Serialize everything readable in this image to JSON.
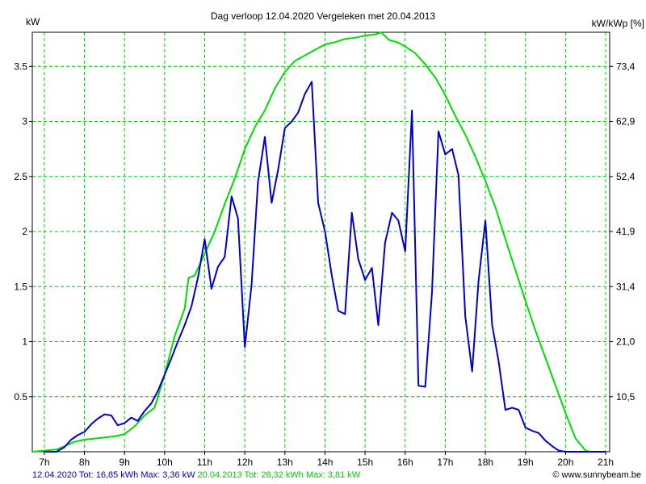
{
  "chart_data": {
    "type": "line",
    "title": "Dag  verloop 12.04.2020   Vergeleken met 20.04.2013",
    "ylabel_left": "kW",
    "ylabel_right": "kW/kWp [%]",
    "xlim": [
      6.7,
      21.1
    ],
    "ylim": [
      0,
      3.81
    ],
    "grid": true,
    "x_tick_labels": [
      "7h",
      "8h",
      "9h",
      "10h",
      "11h",
      "12h",
      "13h",
      "14h",
      "15h",
      "16h",
      "17h",
      "18h",
      "19h",
      "20h",
      "21h"
    ],
    "y_ticks_left": [
      0.5,
      1,
      1.5,
      2,
      2.5,
      3,
      3.5
    ],
    "y_tick_labels_left": [
      "0.5",
      "1",
      "1.5",
      "2",
      "2.5",
      "3",
      "3.5"
    ],
    "y_tick_labels_right": [
      "10,5",
      "21,0",
      "31,4",
      "41,9",
      "52,4",
      "62,9",
      "73,4"
    ],
    "series": [
      {
        "name": "12.04.2020 Tot: 16,85 kWh Max: 3,36 kW",
        "color": "#0000cc",
        "x": [
          7.0,
          7.3,
          7.5,
          7.67,
          7.83,
          8.0,
          8.17,
          8.33,
          8.5,
          8.67,
          8.83,
          9.0,
          9.17,
          9.33,
          9.5,
          9.67,
          9.83,
          10.0,
          10.17,
          10.33,
          10.5,
          10.67,
          10.83,
          11.0,
          11.17,
          11.33,
          11.5,
          11.67,
          11.83,
          12.0,
          12.17,
          12.33,
          12.5,
          12.67,
          12.83,
          13.0,
          13.17,
          13.33,
          13.5,
          13.67,
          13.83,
          14.0,
          14.17,
          14.33,
          14.5,
          14.67,
          14.83,
          15.0,
          15.17,
          15.33,
          15.5,
          15.67,
          15.83,
          16.0,
          16.17,
          16.33,
          16.5,
          16.67,
          16.83,
          17.0,
          17.17,
          17.33,
          17.5,
          17.67,
          17.83,
          18.0,
          18.17,
          18.33,
          18.5,
          18.67,
          18.83,
          19.0,
          19.17,
          19.33,
          19.5,
          19.67,
          19.83,
          20.0,
          20.5,
          21.0
        ],
        "values": [
          0.0,
          0.0,
          0.04,
          0.11,
          0.15,
          0.18,
          0.25,
          0.3,
          0.34,
          0.33,
          0.24,
          0.26,
          0.31,
          0.28,
          0.37,
          0.44,
          0.55,
          0.7,
          0.85,
          1.0,
          1.15,
          1.32,
          1.58,
          1.93,
          1.48,
          1.68,
          1.77,
          2.32,
          2.12,
          0.95,
          1.52,
          2.45,
          2.86,
          2.26,
          2.56,
          2.94,
          3.0,
          3.08,
          3.25,
          3.36,
          2.26,
          2.0,
          1.6,
          1.28,
          1.25,
          2.17,
          1.75,
          1.56,
          1.67,
          1.15,
          1.9,
          2.17,
          2.1,
          1.82,
          3.1,
          0.6,
          0.59,
          1.45,
          2.91,
          2.7,
          2.75,
          2.51,
          1.23,
          0.73,
          1.55,
          2.1,
          1.15,
          0.82,
          0.38,
          0.4,
          0.38,
          0.22,
          0.19,
          0.17,
          0.1,
          0.05,
          0.01,
          0.0,
          0.0,
          0.0
        ]
      },
      {
        "name": "20.04.2013 Tot: 28,32 kWh Max: 3,81 kW",
        "color": "#00dd00",
        "x": [
          6.7,
          7.3,
          7.5,
          7.75,
          8.0,
          8.25,
          8.5,
          8.75,
          9.0,
          9.25,
          9.5,
          9.75,
          10.0,
          10.25,
          10.5,
          10.6,
          10.75,
          11.0,
          11.25,
          11.5,
          11.75,
          12.0,
          12.25,
          12.5,
          12.75,
          13.0,
          13.25,
          13.5,
          13.75,
          14.0,
          14.25,
          14.5,
          14.75,
          15.0,
          15.25,
          15.4,
          15.6,
          15.8,
          16.0,
          16.25,
          16.5,
          16.75,
          17.0,
          17.25,
          17.5,
          17.75,
          18.0,
          18.25,
          18.5,
          18.75,
          19.0,
          19.25,
          19.5,
          19.75,
          20.0,
          20.25,
          20.5,
          20.6,
          21.0
        ],
        "values": [
          0.0,
          0.02,
          0.05,
          0.09,
          0.11,
          0.12,
          0.13,
          0.14,
          0.16,
          0.23,
          0.33,
          0.4,
          0.7,
          1.05,
          1.3,
          1.58,
          1.6,
          1.8,
          2.0,
          2.25,
          2.48,
          2.75,
          2.95,
          3.1,
          3.3,
          3.45,
          3.55,
          3.6,
          3.65,
          3.7,
          3.72,
          3.75,
          3.76,
          3.78,
          3.79,
          3.81,
          3.74,
          3.72,
          3.68,
          3.62,
          3.52,
          3.4,
          3.24,
          3.05,
          2.88,
          2.68,
          2.46,
          2.22,
          1.93,
          1.65,
          1.37,
          1.1,
          0.85,
          0.6,
          0.35,
          0.12,
          0.01,
          0.0,
          0.0
        ]
      }
    ]
  },
  "footer": {
    "legend_blue": "12.04.2020 Tot: 16,85 kWh Max: 3,36 kW",
    "legend_green": "20.04.2013 Tot: 28,32 kWh Max: 3,81 kW",
    "credit": "© www.sunnybeam.be"
  }
}
